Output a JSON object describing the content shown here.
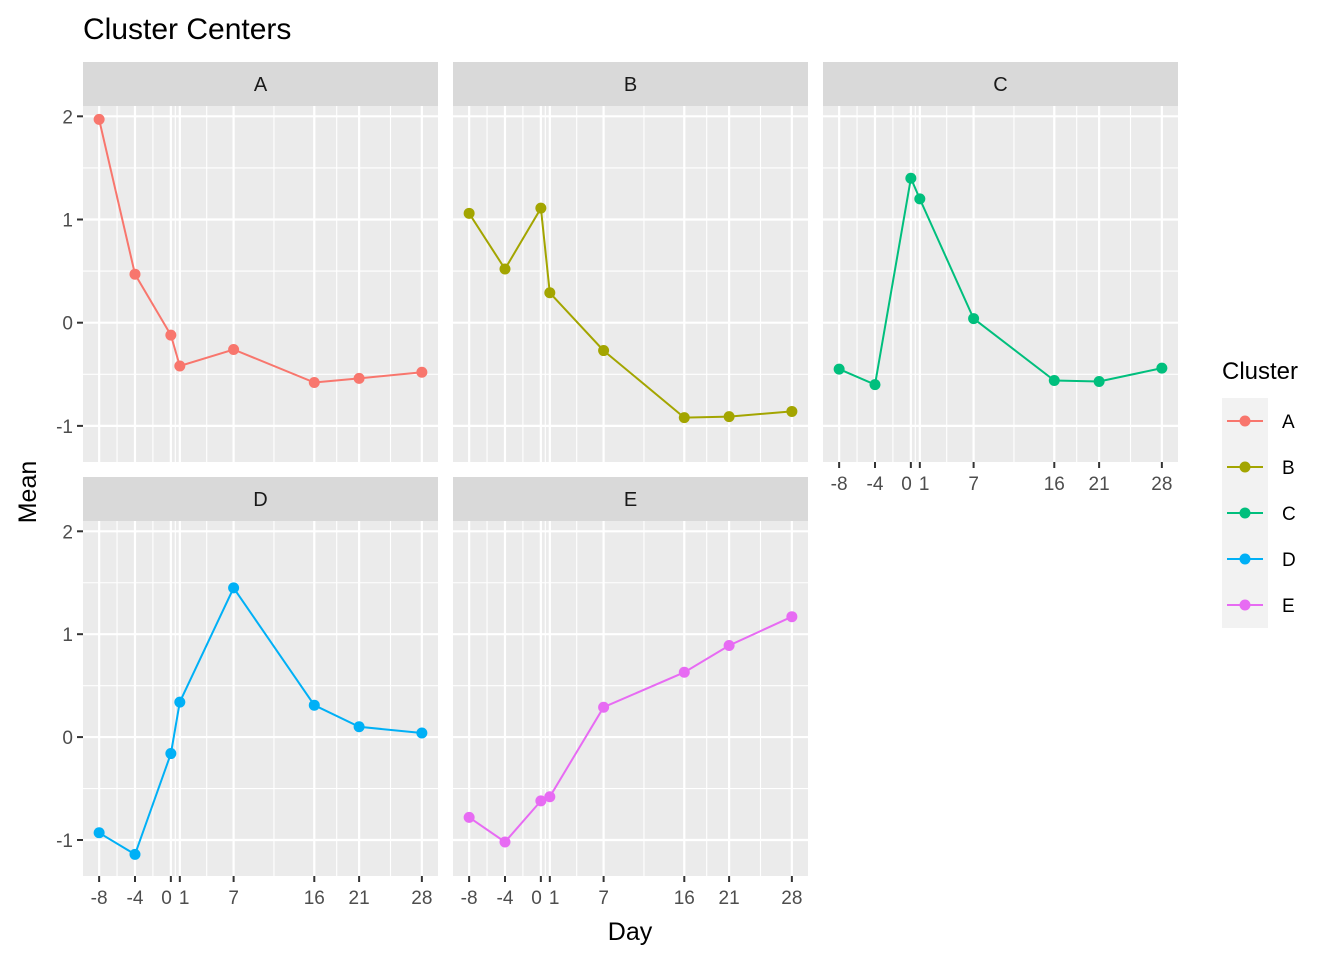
{
  "chart_data": {
    "type": "line",
    "title": "Cluster Centers",
    "xlabel": "Day",
    "ylabel": "Mean",
    "x": [
      -8,
      -4,
      0,
      1,
      7,
      16,
      21,
      28
    ],
    "x_tick_labels": [
      "-8",
      "-4",
      "0",
      "1",
      "7",
      "16",
      "21",
      "28"
    ],
    "y_ticks": [
      -1,
      0,
      1,
      2
    ],
    "y_tick_labels": [
      "-1",
      "0",
      "1",
      "2"
    ],
    "ylim": [
      -1.35,
      2.1
    ],
    "xlim": [
      -9.8,
      29.8
    ],
    "facet_layout": "3 columns x 2 rows, shared axes",
    "grid": true,
    "legend": {
      "title": "Cluster",
      "placement": "right",
      "entries": [
        "A",
        "B",
        "C",
        "D",
        "E"
      ]
    },
    "colors": {
      "A": "#F8766D",
      "B": "#A3A500",
      "C": "#00BF7D",
      "D": "#00B0F6",
      "E": "#E76BF3",
      "panel_bg": "#EBEBEB",
      "strip_bg": "#D9D9D9"
    },
    "series": [
      {
        "name": "A",
        "values": [
          1.97,
          0.47,
          -0.12,
          -0.42,
          -0.26,
          -0.58,
          -0.54,
          -0.48
        ]
      },
      {
        "name": "B",
        "values": [
          1.06,
          0.52,
          1.11,
          0.29,
          -0.27,
          -0.92,
          -0.91,
          -0.86
        ]
      },
      {
        "name": "C",
        "values": [
          -0.45,
          -0.6,
          1.4,
          1.2,
          0.04,
          -0.56,
          -0.57,
          -0.44
        ]
      },
      {
        "name": "D",
        "values": [
          -0.93,
          -1.14,
          -0.16,
          0.34,
          1.45,
          0.31,
          0.1,
          0.04
        ]
      },
      {
        "name": "E",
        "values": [
          -0.78,
          -1.02,
          -0.62,
          -0.58,
          0.29,
          0.63,
          0.89,
          1.17
        ]
      }
    ]
  }
}
